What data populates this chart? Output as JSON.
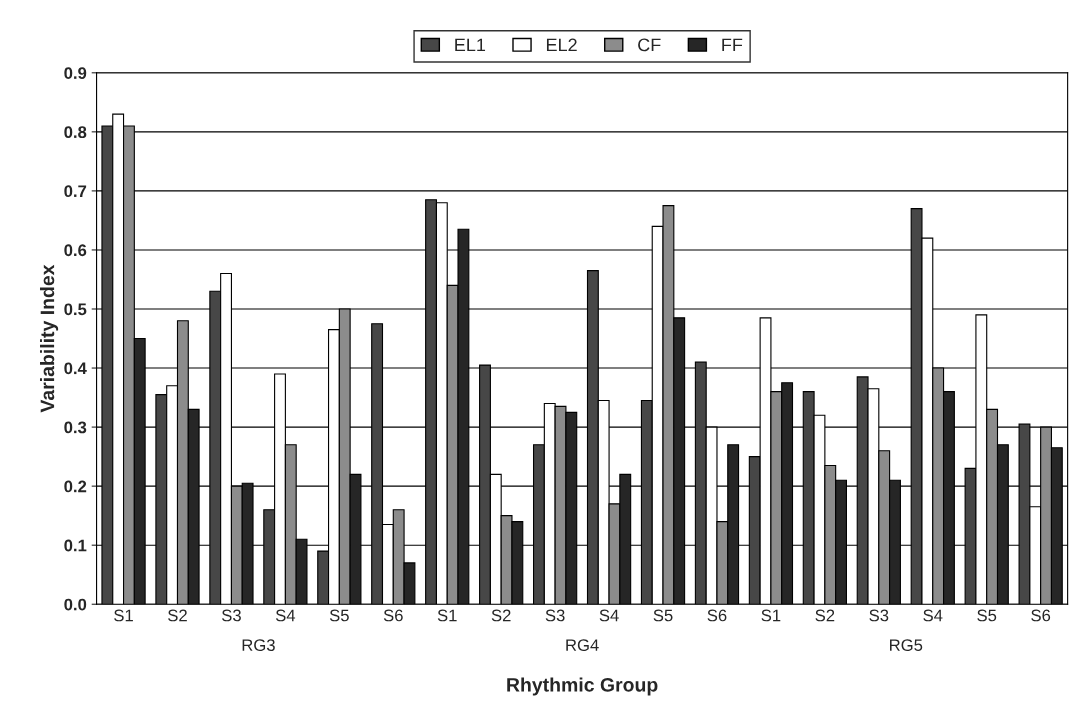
{
  "chart_data": {
    "type": "bar",
    "xlabel": "Rhythmic Group",
    "ylabel": "Variability Index",
    "categories": [
      "S1",
      "S2",
      "S3",
      "S4",
      "S5",
      "S6",
      "S1",
      "S2",
      "S3",
      "S4",
      "S5",
      "S6",
      "S1",
      "S2",
      "S3",
      "S4",
      "S5",
      "S6"
    ],
    "annotations": [
      "RG3",
      "RG4",
      "RG5"
    ],
    "series": [
      {
        "name": "EL1",
        "color": "#474747",
        "values": [
          0.81,
          0.355,
          0.53,
          0.16,
          0.09,
          0.475,
          0.685,
          0.405,
          0.27,
          0.565,
          0.345,
          0.41,
          0.25,
          0.36,
          0.385,
          0.67,
          0.23,
          0.305
        ]
      },
      {
        "name": "EL2",
        "color": "#ffffff",
        "values": [
          0.83,
          0.37,
          0.56,
          0.39,
          0.465,
          0.135,
          0.68,
          0.22,
          0.34,
          0.345,
          0.64,
          0.3,
          0.485,
          0.32,
          0.365,
          0.62,
          0.49,
          0.165
        ]
      },
      {
        "name": "CF",
        "color": "#8c8c8c",
        "values": [
          0.81,
          0.48,
          0.2,
          0.27,
          0.5,
          0.16,
          0.54,
          0.15,
          0.335,
          0.17,
          0.675,
          0.14,
          0.36,
          0.235,
          0.26,
          0.4,
          0.33,
          0.3
        ]
      },
      {
        "name": "FF",
        "color": "#262626",
        "values": [
          0.45,
          0.33,
          0.205,
          0.11,
          0.22,
          0.07,
          0.635,
          0.14,
          0.325,
          0.22,
          0.485,
          0.27,
          0.375,
          0.21,
          0.21,
          0.36,
          0.27,
          0.265
        ]
      }
    ],
    "ylim": [
      0,
      0.9
    ],
    "yticks": [
      {
        "value": 0,
        "label": "0.0"
      },
      0.1,
      0.2,
      0.3,
      0.4,
      0.5,
      0.6,
      0.7,
      0.8,
      0.9
    ],
    "grid": "y",
    "legend": "top"
  }
}
